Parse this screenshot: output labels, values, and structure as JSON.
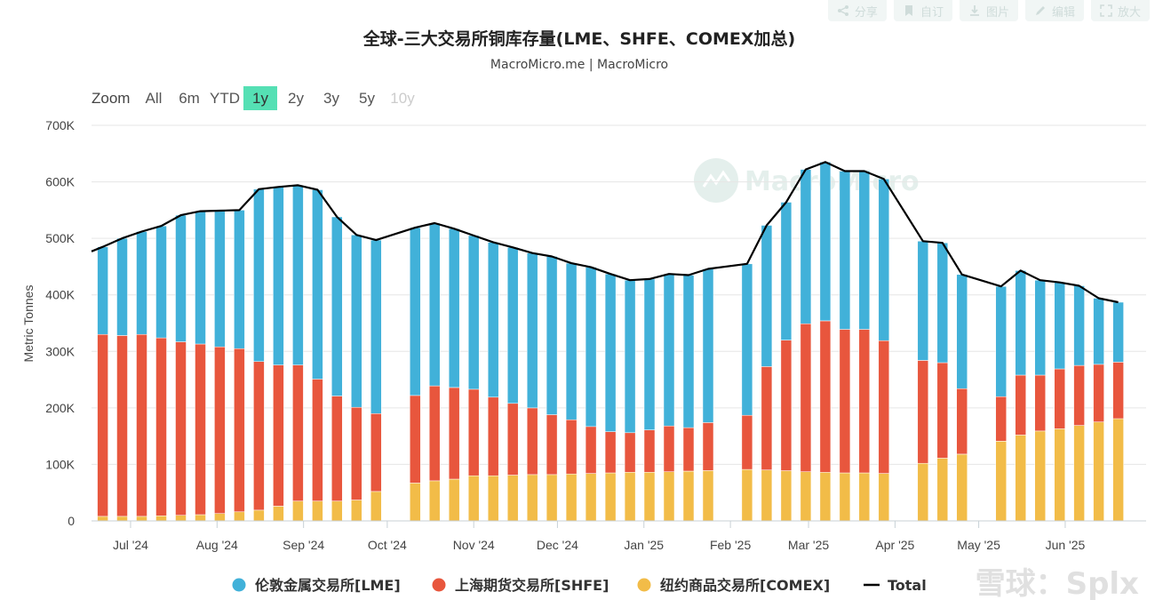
{
  "toolbar": {
    "buttons": [
      {
        "icon": "share-icon",
        "label": "分享"
      },
      {
        "icon": "bookmark-icon",
        "label": "自订"
      },
      {
        "icon": "download-icon",
        "label": "图片"
      },
      {
        "icon": "pencil-icon",
        "label": "编辑"
      },
      {
        "icon": "expand-icon",
        "label": "放大"
      }
    ]
  },
  "range_selector": {
    "label": "Zoom",
    "buttons": [
      "All",
      "6m",
      "YTD",
      "1y",
      "2y",
      "3y",
      "5y",
      "10y"
    ],
    "selected": "1y",
    "disabled": [
      "10y"
    ],
    "active_color": "#55e0b4"
  },
  "watermark": {
    "text": "MacroMicro"
  },
  "corner_watermark": {
    "text": "雪球：Splx"
  },
  "chart_data": {
    "type": "bar",
    "stacked": true,
    "title": "全球-三大交易所铜库存量(LME、SHFE、COMEX加总)",
    "subtitle": "MacroMicro.me | MacroMicro",
    "ylabel": "Metric Tonnes",
    "ylim": [
      0,
      700000
    ],
    "yticks": [
      0,
      100000,
      200000,
      300000,
      400000,
      500000,
      600000,
      700000
    ],
    "ytick_labels": [
      "0",
      "100K",
      "200K",
      "300K",
      "400K",
      "500K",
      "600K",
      "700K"
    ],
    "xlim": [
      "2024-06-17",
      "2025-06-30"
    ],
    "xticks": [
      {
        "date": "2024-07-01",
        "label": "Jul '24"
      },
      {
        "date": "2024-08-01",
        "label": "Aug '24"
      },
      {
        "date": "2024-09-01",
        "label": "Sep '24"
      },
      {
        "date": "2024-10-01",
        "label": "Oct '24"
      },
      {
        "date": "2024-11-01",
        "label": "Nov '24"
      },
      {
        "date": "2024-12-01",
        "label": "Dec '24"
      },
      {
        "date": "2025-01-01",
        "label": "Jan '25"
      },
      {
        "date": "2025-02-01",
        "label": "Feb '25"
      },
      {
        "date": "2025-03-01",
        "label": "Mar '25"
      },
      {
        "date": "2025-04-01",
        "label": "Apr '25"
      },
      {
        "date": "2025-05-01",
        "label": "May '25"
      },
      {
        "date": "2025-06-01",
        "label": "Jun '25"
      }
    ],
    "grid": true,
    "legend_position": "bottom",
    "x": [
      "2024-06-21",
      "2024-06-28",
      "2024-07-05",
      "2024-07-12",
      "2024-07-19",
      "2024-07-26",
      "2024-08-02",
      "2024-08-09",
      "2024-08-16",
      "2024-08-23",
      "2024-08-30",
      "2024-09-06",
      "2024-09-13",
      "2024-09-20",
      "2024-09-27",
      "2024-10-11",
      "2024-10-18",
      "2024-10-25",
      "2024-11-01",
      "2024-11-08",
      "2024-11-15",
      "2024-11-22",
      "2024-11-29",
      "2024-12-06",
      "2024-12-13",
      "2024-12-20",
      "2024-12-27",
      "2025-01-03",
      "2025-01-10",
      "2025-01-17",
      "2025-01-24",
      "2025-02-07",
      "2025-02-14",
      "2025-02-21",
      "2025-02-28",
      "2025-03-07",
      "2025-03-14",
      "2025-03-21",
      "2025-03-28",
      "2025-04-11",
      "2025-04-18",
      "2025-04-25",
      "2025-05-09",
      "2025-05-16",
      "2025-05-23",
      "2025-05-30",
      "2025-06-06",
      "2025-06-13",
      "2025-06-20"
    ],
    "series": [
      {
        "name": "纽约商品交易所[COMEX]",
        "color": "#f2bc48",
        "values": [
          8000,
          8000,
          8000,
          9000,
          10000,
          11000,
          13000,
          16000,
          19000,
          26000,
          35000,
          35000,
          35000,
          37000,
          52000,
          67000,
          71000,
          74000,
          80000,
          80000,
          81000,
          82000,
          82000,
          83000,
          84000,
          85000,
          86000,
          86000,
          87000,
          88000,
          89000,
          91000,
          90000,
          89000,
          87000,
          86000,
          85000,
          85000,
          84000,
          102000,
          111000,
          118000,
          141000,
          152000,
          159000,
          163000,
          169000,
          175000,
          181000
        ]
      },
      {
        "name": "上海期货交易所[SHFE]",
        "color": "#e8563d",
        "values": [
          322000,
          320000,
          322000,
          315000,
          307000,
          302000,
          295000,
          289000,
          263000,
          250000,
          241000,
          216000,
          186000,
          164000,
          138000,
          155000,
          168000,
          162000,
          153000,
          139000,
          127000,
          118000,
          106000,
          96000,
          83000,
          73000,
          70000,
          75000,
          81000,
          77000,
          85000,
          96000,
          183000,
          231000,
          262000,
          268000,
          254000,
          254000,
          235000,
          182000,
          169000,
          116000,
          79000,
          106000,
          99000,
          106000,
          106000,
          102000,
          100000
        ]
      },
      {
        "name": "伦敦金属交易所[LME]",
        "color": "#41b1d9",
        "values": [
          155000,
          172000,
          182000,
          198000,
          224000,
          235000,
          241000,
          245000,
          305000,
          315000,
          318000,
          335000,
          317000,
          305000,
          307000,
          297000,
          288000,
          281000,
          272000,
          274000,
          276000,
          274000,
          280000,
          277000,
          282000,
          279000,
          270000,
          267000,
          269000,
          270000,
          272000,
          268000,
          250000,
          244000,
          273000,
          281000,
          280000,
          280000,
          286000,
          211000,
          212000,
          202000,
          195000,
          185000,
          168000,
          153000,
          141000,
          117000,
          106000
        ]
      },
      {
        "name": "Total",
        "color": "#000000",
        "type": "line",
        "x": [
          "2024-06-17",
          "2024-06-21",
          "2024-06-28",
          "2024-07-05",
          "2024-07-12",
          "2024-07-19",
          "2024-07-26",
          "2024-08-02",
          "2024-08-09",
          "2024-08-16",
          "2024-08-23",
          "2024-08-30",
          "2024-09-06",
          "2024-09-13",
          "2024-09-20",
          "2024-09-27",
          "2024-10-11",
          "2024-10-18",
          "2024-10-25",
          "2024-11-01",
          "2024-11-08",
          "2024-11-15",
          "2024-11-22",
          "2024-11-29",
          "2024-12-06",
          "2024-12-13",
          "2024-12-20",
          "2024-12-27",
          "2025-01-03",
          "2025-01-10",
          "2025-01-17",
          "2025-01-24",
          "2025-02-07",
          "2025-02-14",
          "2025-02-21",
          "2025-02-28",
          "2025-03-07",
          "2025-03-14",
          "2025-03-21",
          "2025-03-28",
          "2025-04-11",
          "2025-04-18",
          "2025-04-25",
          "2025-05-09",
          "2025-05-16",
          "2025-05-23",
          "2025-05-30",
          "2025-06-06",
          "2025-06-13",
          "2025-06-20"
        ],
        "values": [
          477000,
          485000,
          500000,
          512000,
          522000,
          541000,
          548000,
          549000,
          550000,
          587000,
          591000,
          594000,
          586000,
          538000,
          506000,
          497000,
          519000,
          527000,
          517000,
          505000,
          493000,
          484000,
          474000,
          468000,
          456000,
          449000,
          437000,
          426000,
          428000,
          437000,
          435000,
          446000,
          455000,
          523000,
          564000,
          622000,
          635000,
          619000,
          619000,
          605000,
          495000,
          492000,
          436000,
          415000,
          443000,
          426000,
          422000,
          416000,
          394000,
          387000
        ]
      }
    ]
  }
}
